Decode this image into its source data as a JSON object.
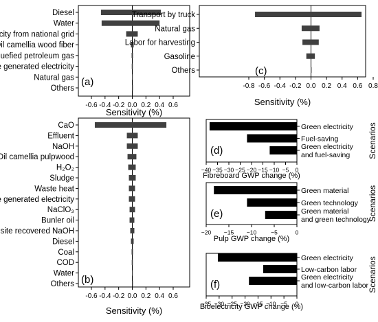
{
  "chart_data": [
    {
      "id": "a",
      "type": "bar",
      "orientation": "horizontal",
      "panel_label": "(a)",
      "xlabel": "Sensitivity (%)",
      "xlim": [
        -0.6,
        0.6
      ],
      "xticks": [
        -0.6,
        -0.4,
        -0.2,
        0.0,
        0.2,
        0.4,
        0.6
      ],
      "xtick_labels": [
        "-0.6",
        "-0.4",
        "-0.2",
        "0.0",
        "0.2",
        "0.4",
        "0.6"
      ],
      "categories": [
        "Diesel",
        "Water",
        "Electricity from national grid",
        "Oil camellia wood fiber",
        "Liquefied petroleum gas",
        "Onsite generated electricity",
        "Natural gas",
        "Others"
      ],
      "bars": [
        [
          -0.46,
          0.42
        ],
        [
          -0.45,
          0.4
        ],
        [
          -0.09,
          0.08
        ],
        [
          -0.02,
          0.02
        ],
        [
          -0.01,
          0.01
        ],
        [
          -0.008,
          0.008
        ],
        [
          -0.005,
          0.005
        ],
        [
          -0.003,
          0.003
        ]
      ]
    },
    {
      "id": "b",
      "type": "bar",
      "orientation": "horizontal",
      "panel_label": "(b)",
      "xlabel": "Sensitivity (%)",
      "xlim": [
        -0.6,
        0.6
      ],
      "xticks": [
        -0.6,
        -0.4,
        -0.2,
        0.0,
        0.2,
        0.4,
        0.6
      ],
      "xtick_labels": [
        "-0.6",
        "-0.4",
        "-0.2",
        "0.0",
        "0.2",
        "0.4",
        "0.6"
      ],
      "categories": [
        "CaO",
        "Effluent",
        "NaOH",
        "Oil camellia pulpwood",
        "H₂O₂",
        "Sludge",
        "Waste heat",
        "Onsite generated electricity",
        "NaClO₃",
        "Bunler oil",
        "Onsite recovered NaOH",
        "Diesel",
        "Coal",
        "COD",
        "Water",
        "Others"
      ],
      "bars": [
        [
          -0.55,
          0.5
        ],
        [
          -0.08,
          0.08
        ],
        [
          -0.08,
          0.08
        ],
        [
          -0.07,
          0.06
        ],
        [
          -0.06,
          0.05
        ],
        [
          -0.05,
          0.05
        ],
        [
          -0.05,
          0.04
        ],
        [
          -0.05,
          0.04
        ],
        [
          -0.04,
          0.04
        ],
        [
          -0.04,
          0.03
        ],
        [
          -0.03,
          0.03
        ],
        [
          -0.02,
          0.02
        ],
        [
          -0.01,
          0.01
        ],
        [
          -0.008,
          0.008
        ],
        [
          -0.005,
          0.005
        ],
        [
          -0.003,
          0.003
        ]
      ]
    },
    {
      "id": "c",
      "type": "bar",
      "orientation": "horizontal",
      "panel_label": "(c)",
      "xlabel": "Sensitivity (%)",
      "xlim": [
        -0.8,
        0.8
      ],
      "xticks": [
        -0.8,
        -0.6,
        -0.4,
        -0.2,
        0.0,
        0.2,
        0.4,
        0.6,
        0.8
      ],
      "xtick_labels": [
        "-0.8",
        "-0.6",
        "-0.4",
        "-0.2",
        "0.0",
        "0.2",
        "0.4",
        "0.6",
        "0.8"
      ],
      "categories": [
        "Transport by truck",
        "Natural gas",
        "Labor for harvesting",
        "Gasoline",
        "Others"
      ],
      "bars": [
        [
          -0.72,
          0.65
        ],
        [
          -0.12,
          0.11
        ],
        [
          -0.11,
          0.1
        ],
        [
          -0.06,
          0.05
        ],
        [
          -0.003,
          0.003
        ]
      ]
    },
    {
      "id": "d",
      "type": "bar",
      "orientation": "horizontal",
      "panel_label": "(d)",
      "xlabel": "Fibreboard GWP change (%)",
      "ylabel": "Scenarios",
      "xlim": [
        -40,
        0
      ],
      "xticks": [
        -40,
        -35,
        -30,
        -25,
        -20,
        -15,
        -10,
        -5,
        0
      ],
      "xtick_labels": [
        "−40",
        "−35",
        "−30",
        "−25",
        "−20",
        "−15",
        "−10",
        "−5",
        "0"
      ],
      "categories": [
        [
          "Green electricity"
        ],
        [
          "Fuel-saving"
        ],
        [
          "Green electricity",
          "and fuel-saving"
        ]
      ],
      "values": [
        -38.5,
        -22,
        -12
      ]
    },
    {
      "id": "e",
      "type": "bar",
      "orientation": "horizontal",
      "panel_label": "(e)",
      "xlabel": "Pulp GWP change (%)",
      "ylabel": "Scenarios",
      "xlim": [
        -20,
        0
      ],
      "xticks": [
        -20,
        -15,
        -10,
        -5,
        0
      ],
      "xtick_labels": [
        "−20",
        "−15",
        "−10",
        "−5",
        "0"
      ],
      "categories": [
        [
          "Green material"
        ],
        [
          "Green technology"
        ],
        [
          "Green material",
          "and green technology"
        ]
      ],
      "values": [
        -18.3,
        -11,
        -7
      ]
    },
    {
      "id": "f",
      "type": "bar",
      "orientation": "horizontal",
      "panel_label": "(f)",
      "xlabel": "Bioelectricity GWP change (%)",
      "ylabel": "Scenarios",
      "xlim": [
        -35,
        0
      ],
      "xticks": [
        -35,
        -30,
        -25,
        -20,
        -15,
        -10,
        -5,
        0
      ],
      "xtick_labels": [
        "−35",
        "−30",
        "−25",
        "−20",
        "−15",
        "−10",
        "−5",
        "0"
      ],
      "categories": [
        [
          "Green electricity"
        ],
        [
          "Low-carbon labor"
        ],
        [
          "Green electricity",
          "and low-carbon labor"
        ]
      ],
      "values": [
        -30.5,
        -13,
        -18.5
      ]
    }
  ]
}
